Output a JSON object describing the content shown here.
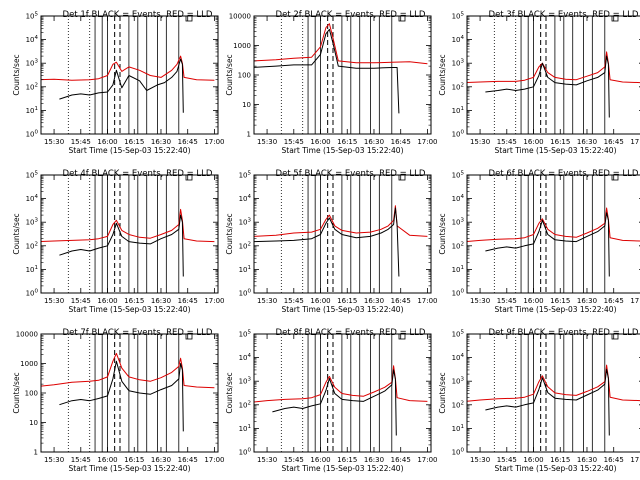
{
  "figure": {
    "x_axis_label": "Start Time (15-Sep-03 15:22:40)",
    "y_axis_label": "Counts/sec",
    "x_tick_labels": [
      "15:30",
      "15:45",
      "16:00",
      "16:15",
      "16:30",
      "16:45",
      "17:00"
    ],
    "colors": {
      "events": "#000000",
      "lld": "#dd0000",
      "background": "#ffffff"
    }
  },
  "chart_data": [
    {
      "type": "line",
      "panel": "Det 1f",
      "title": "Det 1f BLACK = Events, RED = LLD",
      "xlabel": "Start Time (15-Sep-03 15:22:40)",
      "ylabel": "Counts/sec",
      "xlim": [
        "15:22:40",
        "17:02:00"
      ],
      "ylim": [
        1,
        100000
      ],
      "log_y": true,
      "y_tick_labels": [
        "10^0",
        "10^1",
        "10^2",
        "10^3",
        "10^4",
        "10^5"
      ],
      "series": [
        {
          "name": "BLACK = Events",
          "color": "#000000",
          "x": [
            "15:33",
            "15:40",
            "15:45",
            "15:50",
            "15:55",
            "16:00",
            "16:03",
            "16:05",
            "16:08",
            "16:12",
            "16:18",
            "16:22",
            "16:28",
            "16:32",
            "16:36",
            "16:39",
            "16:41",
            "16:42",
            "16:42:30"
          ],
          "values": [
            30,
            45,
            50,
            45,
            55,
            60,
            120,
            500,
            90,
            300,
            180,
            70,
            120,
            150,
            250,
            450,
            1500,
            900,
            8
          ]
        },
        {
          "name": "RED = LLD",
          "color": "#dd0000",
          "x": [
            "15:22",
            "15:30",
            "15:40",
            "15:50",
            "15:55",
            "16:00",
            "16:03",
            "16:05",
            "16:08",
            "16:12",
            "16:18",
            "16:24",
            "16:30",
            "16:36",
            "16:39",
            "16:41",
            "16:42",
            "16:43",
            "16:50",
            "17:00"
          ],
          "values": [
            200,
            210,
            190,
            200,
            220,
            300,
            900,
            1100,
            450,
            700,
            500,
            300,
            250,
            500,
            900,
            2000,
            1000,
            250,
            200,
            190
          ]
        }
      ]
    },
    {
      "type": "line",
      "panel": "Det 2f",
      "title": "Det 2f BLACK = Events, RED = LLD",
      "xlabel": "Start Time (15-Sep-03 15:22:40)",
      "ylabel": "Counts/sec",
      "xlim": [
        "15:22:40",
        "17:02:00"
      ],
      "ylim": [
        1,
        10000
      ],
      "log_y": true,
      "y_tick_labels": [
        "1",
        "10",
        "100",
        "1000",
        "10000"
      ],
      "series": [
        {
          "name": "BLACK = Events",
          "color": "#000000",
          "x": [
            "15:22",
            "15:35",
            "15:45",
            "15:55",
            "16:00",
            "16:03",
            "16:05",
            "16:07",
            "16:10",
            "16:20",
            "16:30",
            "16:40",
            "16:43",
            "16:44"
          ],
          "values": [
            180,
            200,
            220,
            220,
            500,
            2500,
            3500,
            1200,
            200,
            170,
            170,
            180,
            180,
            5
          ]
        },
        {
          "name": "RED = LLD",
          "color": "#dd0000",
          "x": [
            "15:22",
            "15:35",
            "15:45",
            "15:55",
            "16:00",
            "16:03",
            "16:05",
            "16:07",
            "16:10",
            "16:20",
            "16:30",
            "16:40",
            "16:50",
            "17:00"
          ],
          "values": [
            300,
            330,
            370,
            400,
            900,
            4000,
            5500,
            1800,
            300,
            260,
            260,
            270,
            280,
            240
          ]
        }
      ]
    },
    {
      "type": "line",
      "panel": "Det 3f",
      "title": "Det 3f BLACK = Events, RED = LLD",
      "xlabel": "Start Time (15-Sep-03 15:22:40)",
      "ylabel": "Counts/sec",
      "xlim": [
        "15:22:40",
        "17:02:00"
      ],
      "ylim": [
        1,
        100000
      ],
      "log_y": true,
      "y_tick_labels": [
        "10^0",
        "10^1",
        "10^2",
        "10^3",
        "10^4",
        "10^5"
      ],
      "series": [
        {
          "name": "BLACK = Events",
          "color": "#000000",
          "x": [
            "15:33",
            "15:40",
            "15:45",
            "15:50",
            "15:55",
            "16:00",
            "16:03",
            "16:05",
            "16:08",
            "16:12",
            "16:18",
            "16:24",
            "16:30",
            "16:36",
            "16:40",
            "16:41",
            "16:42",
            "16:42:30"
          ],
          "values": [
            60,
            70,
            80,
            70,
            80,
            100,
            300,
            1000,
            250,
            150,
            130,
            120,
            180,
            250,
            400,
            2000,
            900,
            5
          ]
        },
        {
          "name": "RED = LLD",
          "color": "#dd0000",
          "x": [
            "15:22",
            "15:30",
            "15:40",
            "15:50",
            "15:55",
            "16:00",
            "16:03",
            "16:05",
            "16:08",
            "16:12",
            "16:18",
            "16:24",
            "16:30",
            "16:36",
            "16:40",
            "16:41",
            "16:42",
            "16:43",
            "16:50",
            "17:00"
          ],
          "values": [
            150,
            160,
            170,
            170,
            190,
            250,
            700,
            1000,
            400,
            250,
            210,
            200,
            280,
            400,
            700,
            3000,
            1000,
            200,
            160,
            150
          ]
        }
      ]
    },
    {
      "type": "line",
      "panel": "Det 4f",
      "title": "Det 4f BLACK = Events, RED = LLD",
      "xlabel": "Start Time (15-Sep-03 15:22:40)",
      "ylabel": "Counts/sec",
      "xlim": [
        "15:22:40",
        "17:02:00"
      ],
      "ylim": [
        1,
        100000
      ],
      "log_y": true,
      "y_tick_labels": [
        "10^0",
        "10^1",
        "10^2",
        "10^3",
        "10^4",
        "10^5"
      ],
      "series": [
        {
          "name": "BLACK = Events",
          "color": "#000000",
          "x": [
            "15:33",
            "15:40",
            "15:45",
            "15:50",
            "15:55",
            "16:00",
            "16:03",
            "16:05",
            "16:08",
            "16:12",
            "16:18",
            "16:24",
            "16:30",
            "16:36",
            "16:40",
            "16:41",
            "16:42",
            "16:42:30"
          ],
          "values": [
            40,
            60,
            70,
            60,
            80,
            100,
            300,
            900,
            250,
            150,
            130,
            120,
            200,
            300,
            500,
            2000,
            1000,
            5
          ]
        },
        {
          "name": "RED = LLD",
          "color": "#dd0000",
          "x": [
            "15:22",
            "15:30",
            "15:40",
            "15:50",
            "15:55",
            "16:00",
            "16:03",
            "16:05",
            "16:08",
            "16:12",
            "16:18",
            "16:24",
            "16:30",
            "16:36",
            "16:40",
            "16:41",
            "16:42",
            "16:43",
            "16:50",
            "17:00"
          ],
          "values": [
            150,
            160,
            170,
            180,
            200,
            250,
            800,
            1200,
            450,
            300,
            230,
            210,
            300,
            450,
            800,
            3500,
            1200,
            200,
            160,
            150
          ]
        }
      ]
    },
    {
      "type": "line",
      "panel": "Det 5f",
      "title": "Det 5f BLACK = Events, RED = LLD",
      "xlabel": "Start Time (15-Sep-03 15:22:40)",
      "ylabel": "Counts/sec",
      "xlim": [
        "15:22:40",
        "17:02:00"
      ],
      "ylim": [
        1,
        100000
      ],
      "log_y": true,
      "y_tick_labels": [
        "10^0",
        "10^1",
        "10^2",
        "10^3",
        "10^4",
        "10^5"
      ],
      "series": [
        {
          "name": "BLACK = Events",
          "color": "#000000",
          "x": [
            "15:22",
            "15:35",
            "15:45",
            "15:55",
            "16:00",
            "16:03",
            "16:05",
            "16:08",
            "16:12",
            "16:20",
            "16:28",
            "16:34",
            "16:38",
            "16:41",
            "16:42",
            "16:43",
            "16:44"
          ],
          "values": [
            150,
            160,
            170,
            200,
            300,
            900,
            1500,
            500,
            300,
            220,
            250,
            350,
            500,
            800,
            4000,
            800,
            5
          ]
        },
        {
          "name": "RED = LLD",
          "color": "#dd0000",
          "x": [
            "15:22",
            "15:35",
            "15:45",
            "15:55",
            "16:00",
            "16:03",
            "16:05",
            "16:08",
            "16:12",
            "16:20",
            "16:28",
            "16:34",
            "16:38",
            "16:41",
            "16:42",
            "16:43",
            "16:50",
            "17:00"
          ],
          "values": [
            250,
            280,
            350,
            380,
            500,
            1300,
            2000,
            700,
            450,
            350,
            380,
            500,
            700,
            1200,
            5000,
            700,
            280,
            250
          ]
        }
      ]
    },
    {
      "type": "line",
      "panel": "Det 6f",
      "title": "Det 6f BLACK = Events, RED = LLD",
      "xlabel": "Start Time (15-Sep-03 15:22:40)",
      "ylabel": "Counts/sec",
      "xlim": [
        "15:22:40",
        "17:02:00"
      ],
      "ylim": [
        1,
        100000
      ],
      "log_y": true,
      "y_tick_labels": [
        "10^0",
        "10^1",
        "10^2",
        "10^3",
        "10^4",
        "10^5"
      ],
      "series": [
        {
          "name": "BLACK = Events",
          "color": "#000000",
          "x": [
            "15:33",
            "15:40",
            "15:45",
            "15:50",
            "15:55",
            "16:00",
            "16:03",
            "16:05",
            "16:08",
            "16:12",
            "16:18",
            "16:24",
            "16:30",
            "16:36",
            "16:40",
            "16:41",
            "16:42",
            "16:42:30"
          ],
          "values": [
            60,
            80,
            90,
            80,
            100,
            120,
            400,
            1200,
            300,
            180,
            160,
            150,
            250,
            400,
            700,
            2500,
            1200,
            5
          ]
        },
        {
          "name": "RED = LLD",
          "color": "#dd0000",
          "x": [
            "15:22",
            "15:30",
            "15:40",
            "15:50",
            "15:55",
            "16:00",
            "16:03",
            "16:05",
            "16:08",
            "16:12",
            "16:18",
            "16:24",
            "16:30",
            "16:36",
            "16:40",
            "16:41",
            "16:42",
            "16:43",
            "16:50",
            "17:00"
          ],
          "values": [
            150,
            170,
            190,
            200,
            220,
            300,
            900,
            1400,
            500,
            300,
            250,
            230,
            350,
            550,
            900,
            4000,
            1300,
            220,
            170,
            160
          ]
        }
      ]
    },
    {
      "type": "line",
      "panel": "Det 7f",
      "title": "Det 7f BLACK = Events, RED = LLD",
      "xlabel": "Start Time (15-Sep-03 15:22:40)",
      "ylabel": "Counts/sec",
      "xlim": [
        "15:22:40",
        "17:02:00"
      ],
      "ylim": [
        1,
        10000
      ],
      "log_y": true,
      "y_tick_labels": [
        "1",
        "10",
        "100",
        "1000",
        "10000"
      ],
      "series": [
        {
          "name": "BLACK = Events",
          "color": "#000000",
          "x": [
            "15:33",
            "15:40",
            "15:45",
            "15:50",
            "15:55",
            "16:00",
            "16:03",
            "16:05",
            "16:08",
            "16:12",
            "16:18",
            "16:24",
            "16:30",
            "16:36",
            "16:40",
            "16:41",
            "16:42",
            "16:42:30"
          ],
          "values": [
            40,
            55,
            60,
            55,
            65,
            80,
            300,
            1200,
            250,
            120,
            100,
            90,
            130,
            180,
            300,
            1000,
            600,
            5
          ]
        },
        {
          "name": "RED = LLD",
          "color": "#dd0000",
          "x": [
            "15:22",
            "15:30",
            "15:40",
            "15:50",
            "15:55",
            "16:00",
            "16:03",
            "16:05",
            "16:08",
            "16:12",
            "16:18",
            "16:24",
            "16:30",
            "16:36",
            "16:40",
            "16:41",
            "16:42",
            "16:43",
            "16:50",
            "17:00"
          ],
          "values": [
            170,
            190,
            230,
            250,
            270,
            350,
            1200,
            2200,
            700,
            350,
            280,
            250,
            330,
            500,
            800,
            1500,
            700,
            180,
            160,
            150
          ]
        }
      ]
    },
    {
      "type": "line",
      "panel": "Det 8f",
      "title": "Det 8f BLACK = Events, RED = LLD",
      "xlabel": "Start Time (15-Sep-03 15:22:40)",
      "ylabel": "Counts/sec",
      "xlim": [
        "15:22:40",
        "17:02:00"
      ],
      "ylim": [
        1,
        100000
      ],
      "log_y": true,
      "y_tick_labels": [
        "10^0",
        "10^1",
        "10^2",
        "10^3",
        "10^4",
        "10^5"
      ],
      "series": [
        {
          "name": "BLACK = Events",
          "color": "#000000",
          "x": [
            "15:33",
            "15:40",
            "15:45",
            "15:50",
            "15:55",
            "16:00",
            "16:03",
            "16:05",
            "16:08",
            "16:12",
            "16:18",
            "16:24",
            "16:30",
            "16:36",
            "16:40",
            "16:41",
            "16:42",
            "16:42:30"
          ],
          "values": [
            50,
            70,
            80,
            70,
            90,
            110,
            400,
            1300,
            300,
            170,
            150,
            140,
            230,
            380,
            700,
            3000,
            1200,
            5
          ]
        },
        {
          "name": "RED = LLD",
          "color": "#dd0000",
          "x": [
            "15:22",
            "15:30",
            "15:40",
            "15:50",
            "15:55",
            "16:00",
            "16:03",
            "16:05",
            "16:08",
            "16:12",
            "16:18",
            "16:24",
            "16:30",
            "16:36",
            "16:40",
            "16:41",
            "16:42",
            "16:43",
            "16:50",
            "17:00"
          ],
          "values": [
            130,
            150,
            170,
            180,
            200,
            270,
            900,
            1600,
            550,
            300,
            250,
            230,
            350,
            550,
            900,
            4500,
            1300,
            200,
            150,
            140
          ]
        }
      ]
    },
    {
      "type": "line",
      "panel": "Det 9f",
      "title": "Det 9f BLACK = Events, RED = LLD",
      "xlabel": "Start Time (15-Sep-03 15:22:40)",
      "ylabel": "Counts/sec",
      "xlim": [
        "15:22:40",
        "17:02:00"
      ],
      "ylim": [
        1,
        100000
      ],
      "log_y": true,
      "y_tick_labels": [
        "10^0",
        "10^1",
        "10^2",
        "10^3",
        "10^4",
        "10^5"
      ],
      "series": [
        {
          "name": "BLACK = Events",
          "color": "#000000",
          "x": [
            "15:33",
            "15:40",
            "15:45",
            "15:50",
            "15:55",
            "16:00",
            "16:03",
            "16:05",
            "16:08",
            "16:12",
            "16:18",
            "16:24",
            "16:30",
            "16:36",
            "16:40",
            "16:41",
            "16:42",
            "16:42:30"
          ],
          "values": [
            60,
            80,
            90,
            80,
            100,
            120,
            450,
            1400,
            330,
            190,
            170,
            160,
            260,
            420,
            750,
            3200,
            1300,
            5
          ]
        },
        {
          "name": "RED = LLD",
          "color": "#dd0000",
          "x": [
            "15:22",
            "15:30",
            "15:40",
            "15:50",
            "15:55",
            "16:00",
            "16:03",
            "16:05",
            "16:08",
            "16:12",
            "16:18",
            "16:24",
            "16:30",
            "16:36",
            "16:40",
            "16:41",
            "16:42",
            "16:43",
            "16:50",
            "17:00"
          ],
          "values": [
            140,
            160,
            180,
            190,
            210,
            280,
            950,
            1700,
            580,
            320,
            270,
            250,
            370,
            580,
            950,
            4800,
            1400,
            210,
            160,
            150
          ]
        }
      ]
    }
  ]
}
